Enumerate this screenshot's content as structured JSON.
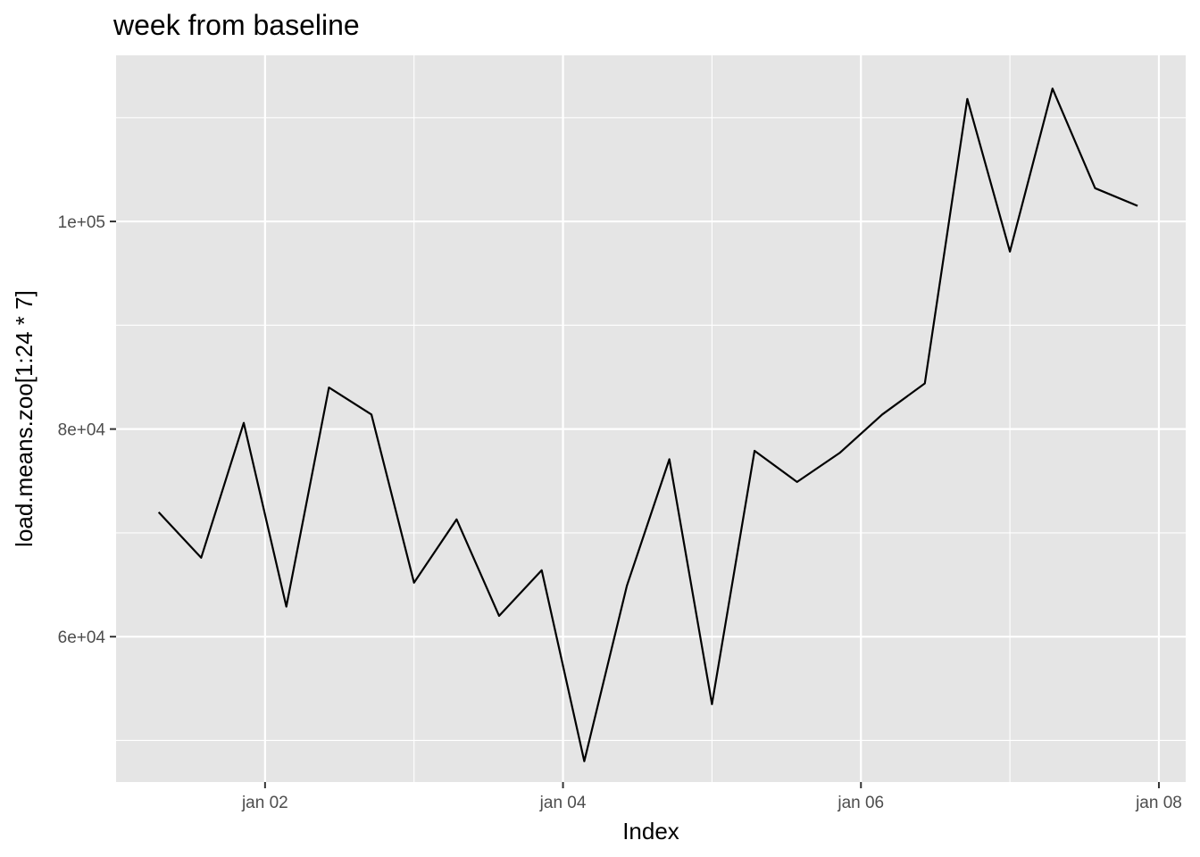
{
  "chart_data": {
    "type": "line",
    "title": "week from baseline",
    "xlabel": "Index",
    "ylabel": "load.means.zoo[1:24 * 7]",
    "x_ticks": [
      {
        "label": "jan 02",
        "value": 2
      },
      {
        "label": "jan 04",
        "value": 4
      },
      {
        "label": "jan 06",
        "value": 6
      },
      {
        "label": "jan 08",
        "value": 8
      }
    ],
    "x_minor_ticks": [
      3,
      5,
      7
    ],
    "y_ticks": [
      {
        "label": "6e+04",
        "value": 60000
      },
      {
        "label": "8e+04",
        "value": 80000
      },
      {
        "label": "1e+05",
        "value": 100000
      }
    ],
    "y_minor_ticks": [
      50000,
      70000,
      90000,
      110000
    ],
    "xlim": [
      1.0,
      8.18
    ],
    "ylim": [
      46000,
      116000
    ],
    "grid": true,
    "colors": {
      "panel": "#e5e5e5",
      "grid": "#ffffff",
      "line": "#000000",
      "tick": "#333333"
    },
    "series": [
      {
        "x": [
          1.2857,
          1.5714,
          1.8571,
          2.1429,
          2.4286,
          2.7143,
          3.0,
          3.2857,
          3.5714,
          3.8571,
          4.1429,
          4.4286,
          4.7143,
          5.0,
          5.2857,
          5.5714,
          5.8571,
          6.1429,
          6.4286,
          6.7143,
          7.0,
          7.2857,
          7.5714,
          7.8571
        ],
        "y": [
          72000,
          67600,
          80600,
          62900,
          84000,
          81400,
          65200,
          71300,
          62000,
          66400,
          48000,
          64900,
          77100,
          53500,
          77900,
          74900,
          77700,
          81400,
          84400,
          111800,
          97100,
          112800,
          103200,
          101500
        ]
      }
    ]
  }
}
